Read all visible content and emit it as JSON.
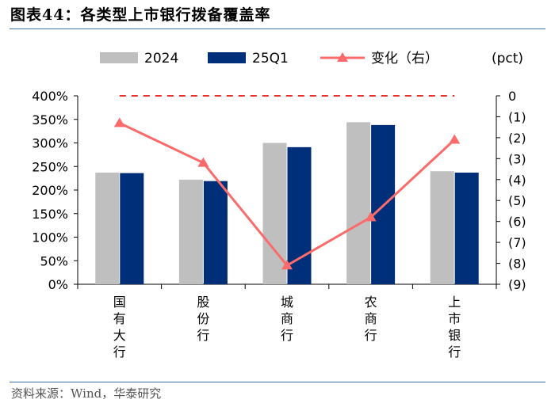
{
  "figure": {
    "title": "图表44：各类型上市银行拨备覆盖率",
    "source": "资料来源：Wind，华泰研究"
  },
  "colors": {
    "bar_2024": "#bfbfbf",
    "bar_25q1": "#002f7a",
    "line_change": "#fb6b6b",
    "zero_line": "#e8312f",
    "rule": "#3d6fa8"
  },
  "chart_data": {
    "type": "bar",
    "categories": [
      "国有大行",
      "股份行",
      "城商行",
      "农商行",
      "上市银行"
    ],
    "series": [
      {
        "name": "2024",
        "type": "bar",
        "axis": "left",
        "values": [
          237,
          222,
          300,
          344,
          240
        ]
      },
      {
        "name": "25Q1",
        "type": "bar",
        "axis": "left",
        "values": [
          236,
          219,
          291,
          338,
          237
        ]
      },
      {
        "name": "变化（右）",
        "type": "line",
        "axis": "right",
        "values": [
          -1.3,
          -3.2,
          -8.1,
          -5.8,
          -2.1
        ]
      }
    ],
    "y_left": {
      "ylim": [
        0,
        400
      ],
      "ticks": [
        "0%",
        "50%",
        "100%",
        "150%",
        "200%",
        "250%",
        "300%",
        "350%",
        "400%"
      ]
    },
    "y_right": {
      "ylim": [
        -9,
        0
      ],
      "unit": "(pct)",
      "ticks": [
        "(9)",
        "(8)",
        "(7)",
        "(6)",
        "(5)",
        "(4)",
        "(3)",
        "(2)",
        "(1)",
        "0"
      ]
    },
    "legend_position": "top",
    "grid": false
  }
}
